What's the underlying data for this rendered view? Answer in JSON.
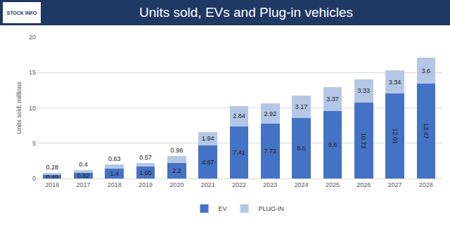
{
  "chart_data": {
    "type": "bar",
    "title": "Units sold, EVs and Plug-in vehicles",
    "annotations": [
      "STOCK INFO"
    ],
    "y_label": "Units sold, millions",
    "categories": [
      "2016",
      "2017",
      "2018",
      "2019",
      "2020",
      "2021",
      "2022",
      "2023",
      "2024",
      "2025",
      "2026",
      "2027",
      "2028"
    ],
    "series": [
      {
        "name": "EV",
        "color": "#4472c4",
        "values": [
          0.49,
          0.82,
          1.4,
          1.65,
          2.2,
          4.67,
          7.41,
          7.72,
          8.6,
          9.6,
          10.73,
          12.01,
          13.47
        ]
      },
      {
        "name": "PLUG-IN",
        "color": "#b4c7e7",
        "values": [
          0.28,
          0.4,
          0.63,
          0.57,
          0.98,
          1.94,
          2.84,
          2.92,
          3.17,
          3.37,
          3.33,
          3.34,
          3.6
        ]
      }
    ],
    "ylim": [
      0,
      20
    ],
    "yticks": [
      0,
      5,
      10,
      15,
      20
    ],
    "grid": true,
    "stacked": true,
    "data_labels": true,
    "legend": "bottom"
  }
}
